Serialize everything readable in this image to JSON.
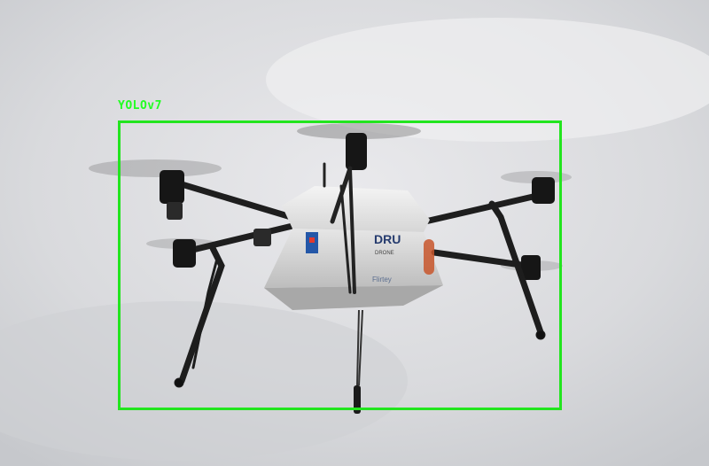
{
  "detection": {
    "label": "YOLOv7",
    "box_color": "#22e51e"
  },
  "drone": {
    "box_text": "DRU",
    "sub_text": "DRONE",
    "side_text": "Flirtey"
  }
}
